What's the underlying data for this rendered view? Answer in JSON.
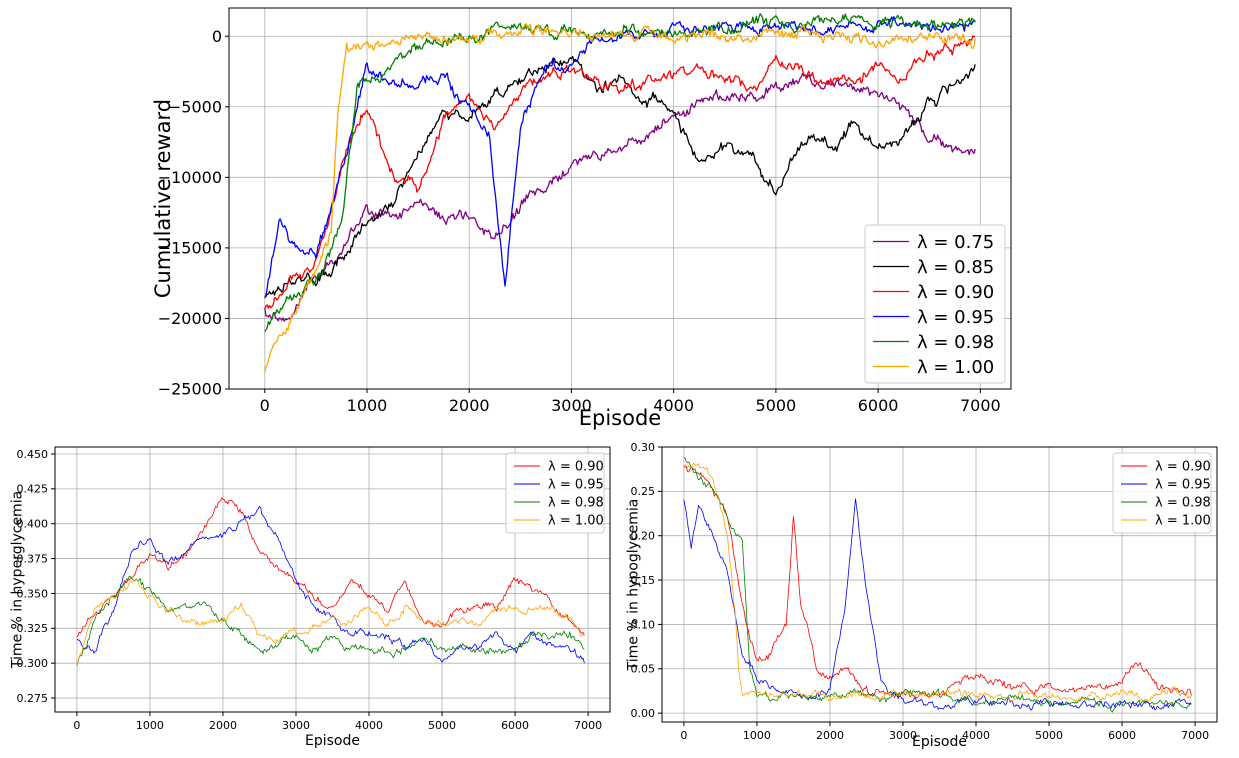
{
  "chart_data": [
    {
      "id": "top",
      "type": "line",
      "title": "",
      "xlabel": "Episode",
      "ylabel": "Cumulative reward",
      "xlim": [
        -350,
        7300
      ],
      "ylim": [
        -25000,
        2000
      ],
      "xticks": [
        0,
        1000,
        2000,
        3000,
        4000,
        5000,
        6000,
        7000
      ],
      "yticks": [
        -25000,
        -20000,
        -15000,
        -10000,
        -5000,
        0
      ],
      "grid": true,
      "legend": "lower-right",
      "series": [
        {
          "name": "λ = 0.75",
          "color": "#800080",
          "x": [
            0,
            250,
            500,
            750,
            1000,
            1250,
            1500,
            1750,
            2000,
            2250,
            2500,
            2750,
            3000,
            3250,
            3500,
            3750,
            4000,
            4250,
            4500,
            4750,
            5000,
            5250,
            5500,
            5750,
            6000,
            6250,
            6500,
            6750,
            6950
          ],
          "y": [
            -19500,
            -20000,
            -17000,
            -15000,
            -12500,
            -12500,
            -12000,
            -13000,
            -13000,
            -14000,
            -12000,
            -11000,
            -9000,
            -8500,
            -8000,
            -7000,
            -5500,
            -5000,
            -4000,
            -4000,
            -3500,
            -3000,
            -3000,
            -4000,
            -4000,
            -5000,
            -7000,
            -8000,
            -8000
          ]
        },
        {
          "name": "λ = 0.85",
          "color": "#000000",
          "x": [
            0,
            250,
            500,
            750,
            1000,
            1250,
            1500,
            1750,
            2000,
            2250,
            2500,
            2750,
            3000,
            3250,
            3500,
            3750,
            4000,
            4250,
            4500,
            4750,
            5000,
            5250,
            5500,
            5750,
            6000,
            6250,
            6500,
            6750,
            6950
          ],
          "y": [
            -18500,
            -17000,
            -17500,
            -15500,
            -13500,
            -12000,
            -8000,
            -5000,
            -6000,
            -4000,
            -3500,
            -2000,
            -1500,
            -3500,
            -3000,
            -4500,
            -5000,
            -9000,
            -8000,
            -8500,
            -11000,
            -7000,
            -7500,
            -6500,
            -8000,
            -7000,
            -4500,
            -3500,
            -2000
          ]
        },
        {
          "name": "λ = 0.90",
          "color": "#ff0000",
          "x": [
            0,
            250,
            500,
            750,
            1000,
            1250,
            1500,
            1750,
            2000,
            2250,
            2500,
            2750,
            3000,
            3250,
            3500,
            3750,
            4000,
            4250,
            4500,
            4750,
            5000,
            5250,
            5500,
            5750,
            6000,
            6250,
            6500,
            6750,
            6950
          ],
          "y": [
            -19500,
            -17500,
            -16500,
            -9000,
            -5000,
            -10000,
            -11000,
            -6000,
            -4500,
            -6500,
            -4000,
            -3000,
            -2500,
            -3000,
            -3500,
            -3000,
            -3000,
            -2500,
            -3000,
            -3500,
            -2000,
            -2500,
            -3000,
            -3000,
            -2000,
            -3000,
            -1500,
            -700,
            0
          ]
        },
        {
          "name": "λ = 0.95",
          "color": "#0000ff",
          "x": [
            0,
            150,
            300,
            500,
            650,
            800,
            1000,
            1250,
            1500,
            1750,
            2000,
            2200,
            2350,
            2500,
            2750,
            3000,
            3250,
            3500,
            3750,
            4000,
            4250,
            4500,
            4750,
            5000,
            5250,
            5500,
            5750,
            6000,
            6250,
            6500,
            6750,
            6950
          ],
          "y": [
            -18500,
            -13000,
            -15000,
            -16000,
            -12000,
            -8000,
            -2000,
            -3500,
            -3500,
            -2500,
            -5500,
            -7000,
            -17500,
            -6500,
            -2500,
            -2000,
            0,
            200,
            0,
            500,
            300,
            600,
            700,
            800,
            700,
            600,
            800,
            900,
            600,
            500,
            700,
            1000
          ]
        },
        {
          "name": "λ = 0.98",
          "color": "#008000",
          "x": [
            0,
            250,
            500,
            750,
            900,
            1000,
            1250,
            1500,
            1750,
            2000,
            2250,
            2500,
            2750,
            3000,
            3250,
            3500,
            3750,
            4000,
            4250,
            4500,
            4750,
            5000,
            5250,
            5500,
            5750,
            6000,
            6250,
            6500,
            6750,
            6950
          ],
          "y": [
            -21000,
            -18000,
            -17000,
            -13500,
            -4000,
            -3000,
            -2000,
            -1000,
            -600,
            0,
            300,
            400,
            300,
            500,
            300,
            400,
            300,
            500,
            500,
            600,
            700,
            800,
            700,
            700,
            800,
            900,
            800,
            900,
            1000,
            1100
          ]
        },
        {
          "name": "λ = 1.00",
          "color": "#ffa500",
          "x": [
            0,
            100,
            250,
            400,
            550,
            650,
            720,
            800,
            1000,
            1250,
            1500,
            1750,
            2000,
            2250,
            2500,
            2750,
            3000,
            3250,
            3500,
            3750,
            4000,
            4250,
            4500,
            4750,
            5000,
            5250,
            5500,
            5750,
            6000,
            6250,
            6500,
            6750,
            6950
          ],
          "y": [
            -24000,
            -22000,
            -20000,
            -18000,
            -16000,
            -14000,
            -5000,
            -500,
            -600,
            -500,
            -300,
            -200,
            -100,
            100,
            300,
            400,
            300,
            300,
            200,
            200,
            0,
            100,
            0,
            0,
            -100,
            0,
            100,
            -100,
            -200,
            -100,
            0,
            0,
            -200
          ]
        }
      ]
    },
    {
      "id": "hyper",
      "type": "line",
      "title": "",
      "xlabel": "Episode",
      "ylabel": "Time % in hyperglycemia",
      "xlim": [
        -300,
        7300
      ],
      "ylim": [
        0.265,
        0.455
      ],
      "xticks": [
        0,
        1000,
        2000,
        3000,
        4000,
        5000,
        6000,
        7000
      ],
      "yticks": [
        0.275,
        0.3,
        0.325,
        0.35,
        0.375,
        0.4,
        0.425,
        0.45
      ],
      "ytick_labels": [
        "0.275",
        "0.300",
        "0.325",
        "0.350",
        "0.375",
        "0.400",
        "0.425",
        "0.450"
      ],
      "grid": true,
      "legend": "top-right",
      "series": [
        {
          "name": "λ = 0.90",
          "color": "#ff0000",
          "x": [
            0,
            250,
            500,
            750,
            1000,
            1250,
            1500,
            1750,
            2000,
            2250,
            2500,
            2750,
            3000,
            3250,
            3500,
            3750,
            4000,
            4250,
            4500,
            4750,
            5000,
            5250,
            5500,
            5750,
            6000,
            6250,
            6500,
            6750,
            6950
          ],
          "y": [
            0.32,
            0.34,
            0.35,
            0.36,
            0.38,
            0.37,
            0.38,
            0.4,
            0.42,
            0.41,
            0.38,
            0.37,
            0.36,
            0.35,
            0.34,
            0.36,
            0.35,
            0.34,
            0.36,
            0.33,
            0.33,
            0.34,
            0.34,
            0.34,
            0.36,
            0.35,
            0.34,
            0.33,
            0.32
          ]
        },
        {
          "name": "λ = 0.95",
          "color": "#0000ff",
          "x": [
            0,
            250,
            500,
            750,
            1000,
            1250,
            1500,
            1750,
            2000,
            2250,
            2500,
            2750,
            3000,
            3250,
            3500,
            3750,
            4000,
            4250,
            4500,
            4750,
            5000,
            5250,
            5500,
            5750,
            6000,
            6250,
            6500,
            6750,
            6950
          ],
          "y": [
            0.32,
            0.31,
            0.34,
            0.38,
            0.39,
            0.37,
            0.38,
            0.39,
            0.39,
            0.4,
            0.41,
            0.39,
            0.36,
            0.34,
            0.33,
            0.32,
            0.32,
            0.32,
            0.31,
            0.32,
            0.3,
            0.31,
            0.31,
            0.32,
            0.31,
            0.32,
            0.31,
            0.31,
            0.3
          ]
        },
        {
          "name": "λ = 0.98",
          "color": "#008000",
          "x": [
            0,
            250,
            500,
            750,
            1000,
            1250,
            1500,
            1750,
            2000,
            2250,
            2500,
            2750,
            3000,
            3250,
            3500,
            3750,
            4000,
            4250,
            4500,
            4750,
            5000,
            5250,
            5500,
            5750,
            6000,
            6250,
            6500,
            6750,
            6950
          ],
          "y": [
            0.3,
            0.33,
            0.35,
            0.36,
            0.35,
            0.34,
            0.34,
            0.34,
            0.33,
            0.32,
            0.31,
            0.31,
            0.32,
            0.31,
            0.32,
            0.31,
            0.31,
            0.31,
            0.31,
            0.32,
            0.31,
            0.31,
            0.31,
            0.31,
            0.31,
            0.32,
            0.32,
            0.32,
            0.31
          ]
        },
        {
          "name": "λ = 1.00",
          "color": "#ffa500",
          "x": [
            0,
            250,
            500,
            750,
            1000,
            1250,
            1500,
            1750,
            2000,
            2250,
            2500,
            2750,
            3000,
            3250,
            3500,
            3750,
            4000,
            4250,
            4500,
            4750,
            5000,
            5250,
            5500,
            5750,
            6000,
            6250,
            6500,
            6750,
            6950
          ],
          "y": [
            0.3,
            0.34,
            0.35,
            0.36,
            0.35,
            0.34,
            0.33,
            0.33,
            0.33,
            0.34,
            0.32,
            0.32,
            0.32,
            0.33,
            0.33,
            0.33,
            0.34,
            0.33,
            0.34,
            0.33,
            0.33,
            0.33,
            0.33,
            0.34,
            0.34,
            0.34,
            0.34,
            0.33,
            0.32
          ]
        }
      ]
    },
    {
      "id": "hypo",
      "type": "line",
      "title": "",
      "xlabel": "Episode",
      "ylabel": "Time % in hypoglycemia",
      "xlim": [
        -300,
        7300
      ],
      "ylim": [
        -0.01,
        0.3
      ],
      "xticks": [
        0,
        1000,
        2000,
        3000,
        4000,
        5000,
        6000,
        7000
      ],
      "yticks": [
        0.0,
        0.05,
        0.1,
        0.15,
        0.2,
        0.25,
        0.3
      ],
      "ytick_labels": [
        "0.00",
        "0.05",
        "0.10",
        "0.15",
        "0.20",
        "0.25",
        "0.30"
      ],
      "grid": true,
      "legend": "top-right",
      "series": [
        {
          "name": "λ = 0.90",
          "color": "#ff0000",
          "x": [
            0,
            200,
            400,
            600,
            800,
            900,
            1000,
            1200,
            1400,
            1500,
            1600,
            1700,
            1800,
            2000,
            2200,
            2400,
            2600,
            2800,
            3000,
            3500,
            4000,
            4500,
            5000,
            5500,
            6000,
            6200,
            6500,
            6950
          ],
          "y": [
            0.28,
            0.27,
            0.25,
            0.22,
            0.12,
            0.08,
            0.06,
            0.07,
            0.1,
            0.22,
            0.12,
            0.09,
            0.05,
            0.04,
            0.05,
            0.03,
            0.02,
            0.02,
            0.02,
            0.02,
            0.04,
            0.03,
            0.03,
            0.03,
            0.03,
            0.06,
            0.03,
            0.02
          ]
        },
        {
          "name": "λ = 0.95",
          "color": "#0000ff",
          "x": [
            0,
            100,
            200,
            400,
            600,
            800,
            1000,
            1200,
            1500,
            1800,
            2000,
            2200,
            2350,
            2500,
            2700,
            2800,
            3000,
            3500,
            4000,
            4500,
            5000,
            5500,
            6000,
            6500,
            6950
          ],
          "y": [
            0.24,
            0.19,
            0.23,
            0.2,
            0.16,
            0.07,
            0.04,
            0.03,
            0.03,
            0.02,
            0.03,
            0.12,
            0.24,
            0.14,
            0.04,
            0.02,
            0.01,
            0.01,
            0.01,
            0.01,
            0.01,
            0.01,
            0.01,
            0.01,
            0.01
          ]
        },
        {
          "name": "λ = 0.98",
          "color": "#008000",
          "x": [
            0,
            200,
            400,
            600,
            800,
            900,
            1000,
            1200,
            1500,
            1800,
            2000,
            2500,
            3000,
            3500,
            4000,
            4500,
            5000,
            5500,
            6000,
            6500,
            6950
          ],
          "y": [
            0.29,
            0.27,
            0.25,
            0.22,
            0.19,
            0.05,
            0.02,
            0.02,
            0.02,
            0.02,
            0.02,
            0.02,
            0.02,
            0.02,
            0.01,
            0.02,
            0.01,
            0.01,
            0.01,
            0.01,
            0.01
          ]
        },
        {
          "name": "λ = 1.00",
          "color": "#ffa500",
          "x": [
            0,
            200,
            400,
            600,
            700,
            750,
            800,
            1000,
            1500,
            2000,
            2500,
            3000,
            3500,
            4000,
            4500,
            5000,
            5500,
            6000,
            6500,
            6950
          ],
          "y": [
            0.28,
            0.28,
            0.26,
            0.2,
            0.12,
            0.05,
            0.02,
            0.02,
            0.02,
            0.02,
            0.02,
            0.02,
            0.02,
            0.02,
            0.02,
            0.02,
            0.02,
            0.02,
            0.02,
            0.02
          ]
        }
      ]
    }
  ]
}
